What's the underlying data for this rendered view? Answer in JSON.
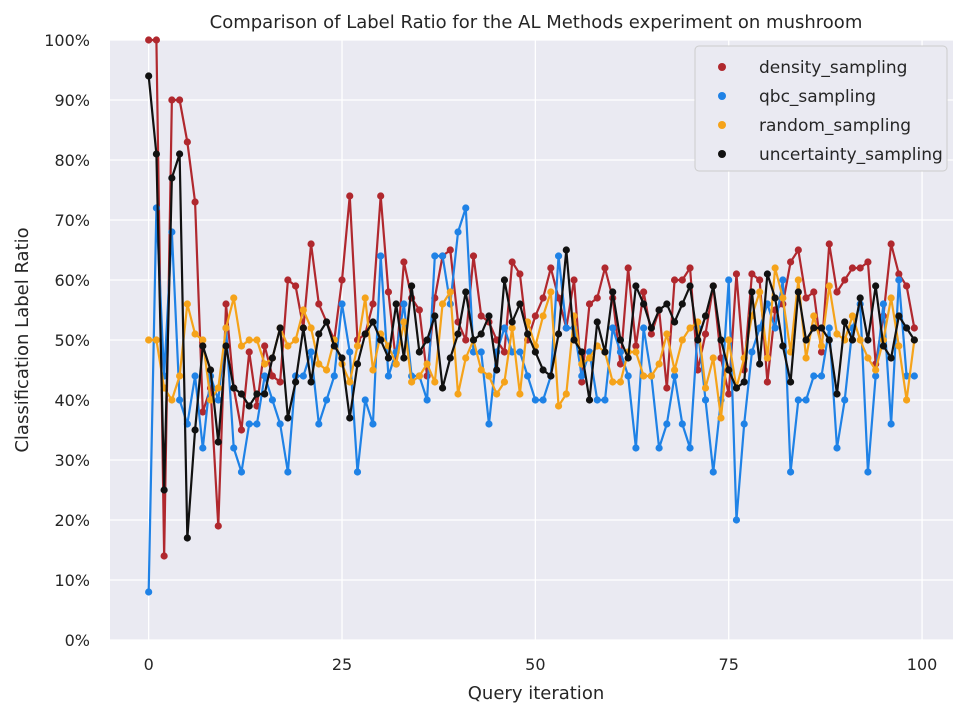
{
  "chart_data": {
    "type": "line",
    "title": "Comparison of Label Ratio for the AL Methods experiment on mushroom",
    "xlabel": "Query iteration",
    "ylabel": "Classification Label Ratio",
    "xlim": [
      -5,
      104
    ],
    "ylim": [
      0,
      100
    ],
    "xticks": [
      0,
      25,
      50,
      75,
      100
    ],
    "xtick_labels": [
      "0",
      "25",
      "50",
      "75",
      "100"
    ],
    "yticks": [
      0,
      10,
      20,
      30,
      40,
      50,
      60,
      70,
      80,
      90,
      100
    ],
    "ytick_labels": [
      "0%",
      "10%",
      "20%",
      "30%",
      "40%",
      "50%",
      "60%",
      "70%",
      "80%",
      "90%",
      "100%"
    ],
    "grid": true,
    "legend_position": "top-right",
    "background_color": "#eaeaf2",
    "series": [
      {
        "name": "density_sampling",
        "color": "#b0282e",
        "values": [
          100,
          100,
          14,
          90,
          90,
          83,
          73,
          38,
          42,
          19,
          56,
          42,
          35,
          48,
          39,
          49,
          44,
          43,
          60,
          59,
          52,
          66,
          56,
          53,
          50,
          60,
          74,
          50,
          51,
          56,
          74,
          58,
          46,
          63,
          57,
          55,
          44,
          57,
          64,
          65,
          53,
          50,
          64,
          54,
          53,
          50,
          48,
          63,
          61,
          50,
          54,
          57,
          62,
          57,
          52,
          60,
          43,
          56,
          57,
          62,
          57,
          46,
          62,
          49,
          58,
          51,
          55,
          42,
          60,
          60,
          62,
          45,
          51,
          59,
          47,
          41,
          61,
          45,
          61,
          60,
          43,
          55,
          56,
          63,
          65,
          57,
          58,
          48,
          66,
          58,
          60,
          62,
          62,
          63,
          46,
          54,
          66,
          61,
          59,
          52
        ]
      },
      {
        "name": "qbc_sampling",
        "color": "#1f82e6",
        "values": [
          8,
          72,
          44,
          68,
          40,
          36,
          44,
          32,
          44,
          40,
          52,
          32,
          28,
          36,
          36,
          44,
          40,
          36,
          28,
          44,
          44,
          48,
          36,
          40,
          44,
          56,
          48,
          28,
          40,
          36,
          64,
          44,
          48,
          56,
          44,
          44,
          40,
          64,
          64,
          56,
          68,
          72,
          48,
          48,
          36,
          48,
          52,
          48,
          48,
          44,
          40,
          40,
          44,
          64,
          52,
          52,
          44,
          48,
          40,
          40,
          52,
          48,
          44,
          32,
          52,
          44,
          32,
          36,
          44,
          36,
          32,
          52,
          40,
          28,
          40,
          60,
          20,
          36,
          48,
          52,
          56,
          52,
          60,
          28,
          40,
          40,
          44,
          44,
          52,
          32,
          40,
          52,
          56,
          28,
          44,
          56,
          36,
          60,
          44,
          44
        ]
      },
      {
        "name": "random_sampling",
        "color": "#f5a31a",
        "values": [
          50,
          50,
          42,
          40,
          44,
          56,
          51,
          50,
          40,
          42,
          52,
          57,
          49,
          50,
          50,
          46,
          47,
          52,
          49,
          50,
          55,
          52,
          46,
          45,
          50,
          46,
          43,
          49,
          57,
          45,
          51,
          49,
          46,
          53,
          43,
          44,
          46,
          43,
          56,
          58,
          41,
          47,
          50,
          45,
          44,
          41,
          43,
          52,
          41,
          53,
          49,
          54,
          58,
          39,
          41,
          54,
          46,
          47,
          49,
          48,
          43,
          43,
          48,
          48,
          44,
          44,
          46,
          51,
          45,
          50,
          52,
          53,
          42,
          47,
          37,
          50,
          42,
          47,
          54,
          58,
          47,
          62,
          57,
          48,
          60,
          47,
          54,
          49,
          59,
          51,
          50,
          54,
          50,
          47,
          45,
          50,
          57,
          49,
          40,
          50
        ]
      },
      {
        "name": "uncertainty_sampling",
        "color": "#111111",
        "values": [
          94,
          81,
          25,
          77,
          81,
          17,
          35,
          49,
          45,
          33,
          49,
          42,
          41,
          39,
          41,
          41,
          47,
          52,
          37,
          43,
          52,
          43,
          51,
          53,
          49,
          47,
          37,
          46,
          51,
          53,
          50,
          47,
          56,
          47,
          59,
          48,
          50,
          54,
          42,
          47,
          51,
          58,
          50,
          51,
          54,
          45,
          60,
          53,
          56,
          51,
          48,
          45,
          44,
          51,
          65,
          50,
          48,
          40,
          53,
          48,
          58,
          50,
          47,
          59,
          56,
          52,
          55,
          56,
          53,
          56,
          59,
          50,
          54,
          59,
          50,
          45,
          42,
          43,
          58,
          46,
          61,
          57,
          49,
          43,
          58,
          50,
          52,
          52,
          50,
          41,
          53,
          50,
          57,
          50,
          59,
          49,
          47,
          54,
          52,
          50
        ]
      }
    ]
  }
}
